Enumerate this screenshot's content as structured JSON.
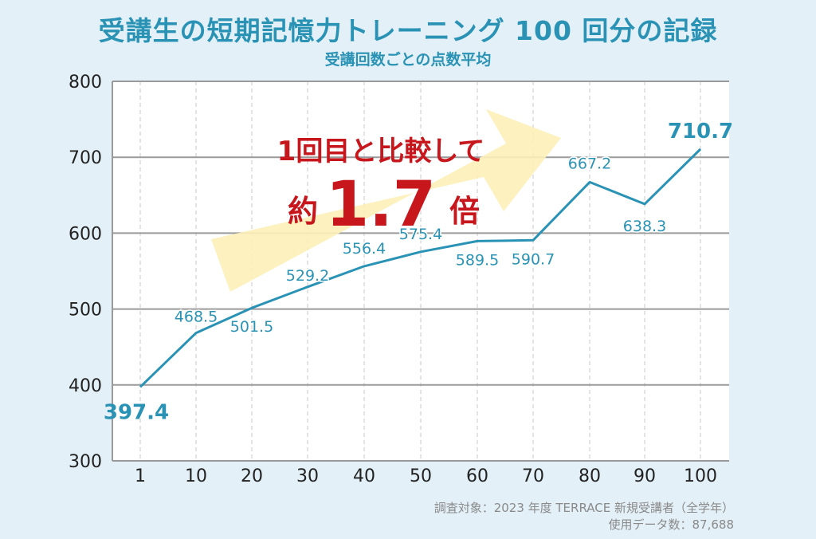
{
  "header": {
    "title": "受講生の短期記憶力トレーニング 100 回分の記録",
    "subtitle": "受講回数ごとの点数平均"
  },
  "callout": {
    "line1": "1回目と比較して",
    "prefix": "約",
    "number": "1.7",
    "suffix": "倍"
  },
  "footer": {
    "source": "調査対象：2023 年度 TERRACE 新規受講者（全学年）",
    "count": "使用データ数：87,688"
  },
  "colors": {
    "line": "#2a93b5",
    "accent": "#c8161d",
    "arrow": "#fdf0b8",
    "background": "#e3f0f7",
    "plot_bg": "#ffffff"
  },
  "chart_data": {
    "type": "line",
    "x": [
      1,
      10,
      20,
      30,
      40,
      50,
      60,
      70,
      80,
      90,
      100
    ],
    "values": [
      397.4,
      468.5,
      501.5,
      529.2,
      556.4,
      575.4,
      589.5,
      590.7,
      667.2,
      638.3,
      710.7
    ],
    "data_labels": [
      "397.4",
      "468.5",
      "501.5",
      "529.2",
      "556.4",
      "575.4",
      "589.5",
      "590.7",
      "667.2",
      "638.3",
      "710.7"
    ],
    "x_tick_labels": [
      "1",
      "10",
      "20",
      "30",
      "40",
      "50",
      "60",
      "70",
      "80",
      "90",
      "100"
    ],
    "y_ticks": [
      300,
      400,
      500,
      600,
      700,
      800
    ],
    "y_tick_labels": [
      "300",
      "400",
      "500",
      "600",
      "700",
      "800"
    ],
    "ylim": [
      300,
      800
    ],
    "grid": "on",
    "title": "受講生の短期記憶力トレーニング 100 回分の記録",
    "subtitle": "受講回数ごとの点数平均"
  }
}
